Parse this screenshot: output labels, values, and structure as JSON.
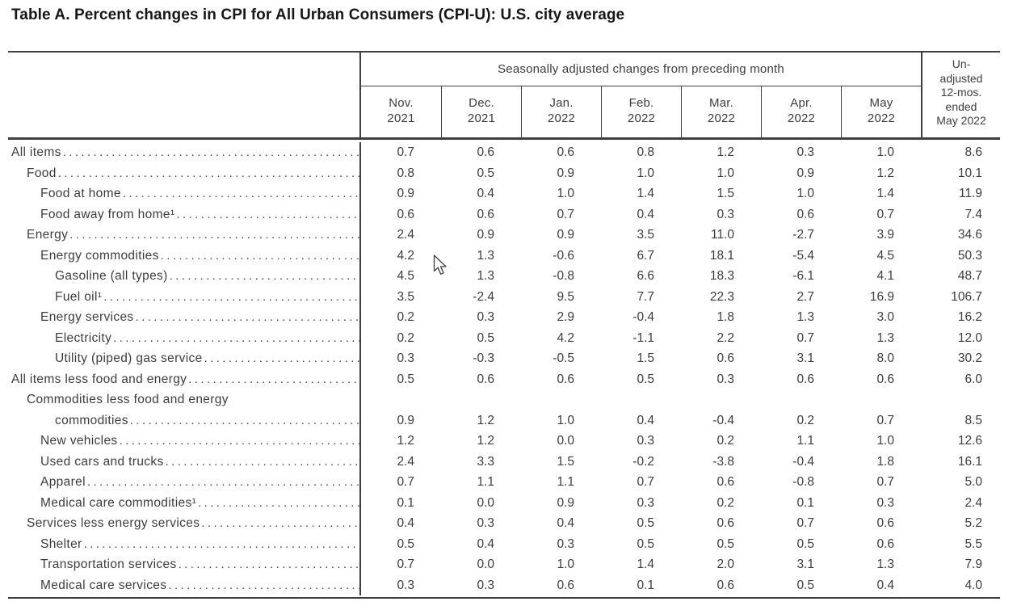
{
  "title": "Table A. Percent changes in CPI for All Urban Consumers (CPI-U): U.S. city average",
  "table": {
    "group_header": "Seasonally adjusted changes from preceding month",
    "months": [
      {
        "m": "Nov.",
        "y": "2021"
      },
      {
        "m": "Dec.",
        "y": "2021"
      },
      {
        "m": "Jan.",
        "y": "2022"
      },
      {
        "m": "Feb.",
        "y": "2022"
      },
      {
        "m": "Mar.",
        "y": "2022"
      },
      {
        "m": "Apr.",
        "y": "2022"
      },
      {
        "m": "May",
        "y": "2022"
      }
    ],
    "unadjusted_lines": [
      "Un-",
      "adjusted",
      "12-mos.",
      "ended",
      "May 2022"
    ],
    "rows": [
      {
        "label": "All items",
        "indent": 0,
        "values": [
          "0.7",
          "0.6",
          "0.6",
          "0.8",
          "1.2",
          "0.3",
          "1.0",
          "8.6"
        ]
      },
      {
        "label": "Food",
        "indent": 1,
        "values": [
          "0.8",
          "0.5",
          "0.9",
          "1.0",
          "1.0",
          "0.9",
          "1.2",
          "10.1"
        ]
      },
      {
        "label": "Food at home",
        "indent": 2,
        "values": [
          "0.9",
          "0.4",
          "1.0",
          "1.4",
          "1.5",
          "1.0",
          "1.4",
          "11.9"
        ]
      },
      {
        "label": "Food away from home¹",
        "indent": 2,
        "values": [
          "0.6",
          "0.6",
          "0.7",
          "0.4",
          "0.3",
          "0.6",
          "0.7",
          "7.4"
        ]
      },
      {
        "label": "Energy",
        "indent": 1,
        "values": [
          "2.4",
          "0.9",
          "0.9",
          "3.5",
          "11.0",
          "-2.7",
          "3.9",
          "34.6"
        ]
      },
      {
        "label": "Energy commodities",
        "indent": 2,
        "values": [
          "4.2",
          "1.3",
          "-0.6",
          "6.7",
          "18.1",
          "-5.4",
          "4.5",
          "50.3"
        ]
      },
      {
        "label": "Gasoline (all types)",
        "indent": 3,
        "values": [
          "4.5",
          "1.3",
          "-0.8",
          "6.6",
          "18.3",
          "-6.1",
          "4.1",
          "48.7"
        ]
      },
      {
        "label": "Fuel oil¹",
        "indent": 3,
        "values": [
          "3.5",
          "-2.4",
          "9.5",
          "7.7",
          "22.3",
          "2.7",
          "16.9",
          "106.7"
        ]
      },
      {
        "label": "Energy services",
        "indent": 2,
        "values": [
          "0.2",
          "0.3",
          "2.9",
          "-0.4",
          "1.8",
          "1.3",
          "3.0",
          "16.2"
        ]
      },
      {
        "label": "Electricity",
        "indent": 3,
        "values": [
          "0.2",
          "0.5",
          "4.2",
          "-1.1",
          "2.2",
          "0.7",
          "1.3",
          "12.0"
        ]
      },
      {
        "label": "Utility (piped) gas service",
        "indent": 3,
        "values": [
          "0.3",
          "-0.3",
          "-0.5",
          "1.5",
          "0.6",
          "3.1",
          "8.0",
          "30.2"
        ]
      },
      {
        "label": "All items less food and energy",
        "indent": 0,
        "values": [
          "0.5",
          "0.6",
          "0.6",
          "0.5",
          "0.3",
          "0.6",
          "0.6",
          "6.0"
        ]
      },
      {
        "label": "Commodities less food and energy",
        "label2": "commodities",
        "indent": 1,
        "values": [
          "0.9",
          "1.2",
          "1.0",
          "0.4",
          "-0.4",
          "0.2",
          "0.7",
          "8.5"
        ]
      },
      {
        "label": "New vehicles",
        "indent": 2,
        "values": [
          "1.2",
          "1.2",
          "0.0",
          "0.3",
          "0.2",
          "1.1",
          "1.0",
          "12.6"
        ]
      },
      {
        "label": "Used cars and trucks",
        "indent": 2,
        "values": [
          "2.4",
          "3.3",
          "1.5",
          "-0.2",
          "-3.8",
          "-0.4",
          "1.8",
          "16.1"
        ]
      },
      {
        "label": "Apparel",
        "indent": 2,
        "values": [
          "0.7",
          "1.1",
          "1.1",
          "0.7",
          "0.6",
          "-0.8",
          "0.7",
          "5.0"
        ]
      },
      {
        "label": "Medical care commodities¹",
        "indent": 2,
        "values": [
          "0.1",
          "0.0",
          "0.9",
          "0.3",
          "0.2",
          "0.1",
          "0.3",
          "2.4"
        ]
      },
      {
        "label": "Services less energy services",
        "indent": 1,
        "values": [
          "0.4",
          "0.3",
          "0.4",
          "0.5",
          "0.6",
          "0.7",
          "0.6",
          "5.2"
        ]
      },
      {
        "label": "Shelter",
        "indent": 2,
        "values": [
          "0.5",
          "0.4",
          "0.3",
          "0.5",
          "0.5",
          "0.5",
          "0.6",
          "5.5"
        ]
      },
      {
        "label": "Transportation services",
        "indent": 2,
        "values": [
          "0.7",
          "0.0",
          "1.0",
          "1.4",
          "2.0",
          "3.1",
          "1.3",
          "7.9"
        ]
      },
      {
        "label": "Medical care services",
        "indent": 2,
        "values": [
          "0.3",
          "0.3",
          "0.6",
          "0.1",
          "0.6",
          "0.5",
          "0.4",
          "4.0"
        ]
      }
    ]
  }
}
